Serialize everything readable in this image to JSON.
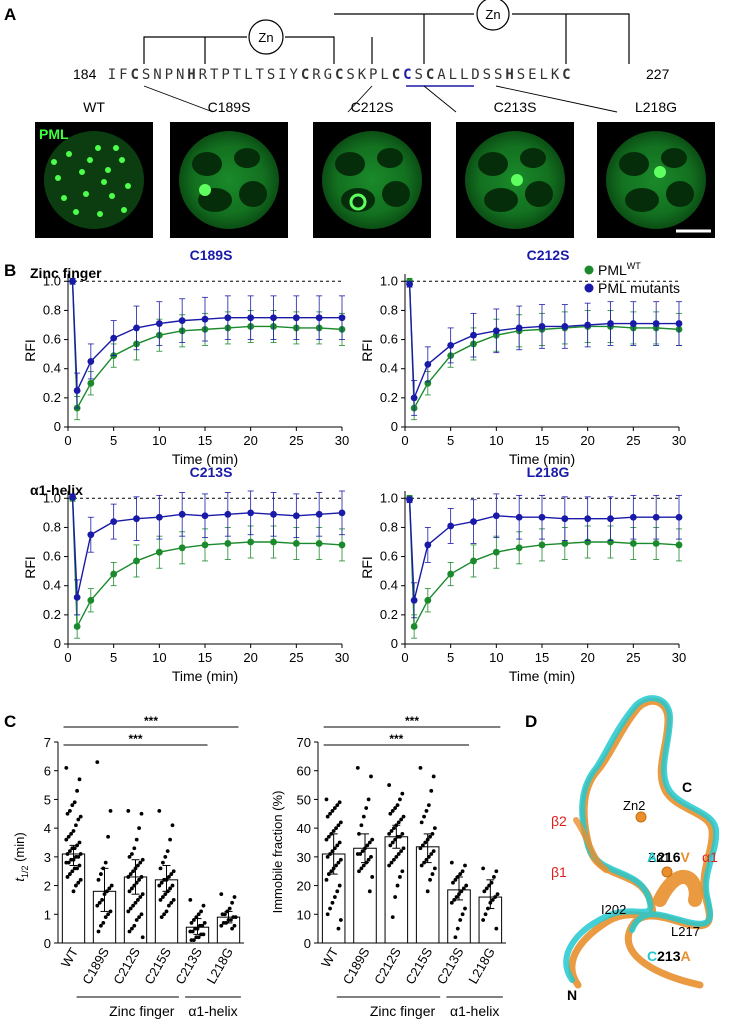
{
  "panel_a": {
    "label": "A",
    "start_index": "184",
    "end_index": "227",
    "zn_label": "Zn",
    "sequence": [
      {
        "t": "I",
        "b": false,
        "blue": false
      },
      {
        "t": "F",
        "b": false,
        "blue": false
      },
      {
        "t": "C",
        "b": true,
        "blue": false
      },
      {
        "t": "S",
        "b": false,
        "blue": false
      },
      {
        "t": "N",
        "b": false,
        "blue": false
      },
      {
        "t": "P",
        "b": false,
        "blue": false
      },
      {
        "t": "N",
        "b": false,
        "blue": false
      },
      {
        "t": "H",
        "b": true,
        "blue": false
      },
      {
        "t": "R",
        "b": false,
        "blue": false
      },
      {
        "t": "T",
        "b": false,
        "blue": false
      },
      {
        "t": "P",
        "b": false,
        "blue": false
      },
      {
        "t": "T",
        "b": false,
        "blue": false
      },
      {
        "t": "L",
        "b": false,
        "blue": false
      },
      {
        "t": "T",
        "b": false,
        "blue": false
      },
      {
        "t": "S",
        "b": false,
        "blue": false
      },
      {
        "t": "I",
        "b": false,
        "blue": false
      },
      {
        "t": "Y",
        "b": false,
        "blue": false
      },
      {
        "t": "C",
        "b": true,
        "blue": false
      },
      {
        "t": "R",
        "b": false,
        "blue": false
      },
      {
        "t": "G",
        "b": false,
        "blue": false
      },
      {
        "t": "C",
        "b": true,
        "blue": false
      },
      {
        "t": "S",
        "b": false,
        "blue": false
      },
      {
        "t": "K",
        "b": false,
        "blue": false
      },
      {
        "t": "P",
        "b": false,
        "blue": false
      },
      {
        "t": "L",
        "b": false,
        "blue": false
      },
      {
        "t": "C",
        "b": true,
        "blue": false
      },
      {
        "t": "C",
        "b": true,
        "blue": true
      },
      {
        "t": "S",
        "b": false,
        "blue": false
      },
      {
        "t": "C",
        "b": true,
        "blue": false
      },
      {
        "t": "A",
        "b": false,
        "blue": false
      },
      {
        "t": "L",
        "b": false,
        "blue": false
      },
      {
        "t": "L",
        "b": false,
        "blue": false
      },
      {
        "t": "D",
        "b": false,
        "blue": false
      },
      {
        "t": "S",
        "b": false,
        "blue": false
      },
      {
        "t": "S",
        "b": false,
        "blue": false
      },
      {
        "t": "H",
        "b": true,
        "blue": false
      },
      {
        "t": "S",
        "b": false,
        "blue": false
      },
      {
        "t": "E",
        "b": false,
        "blue": false
      },
      {
        "t": "L",
        "b": false,
        "blue": false
      },
      {
        "t": "K",
        "b": false,
        "blue": false
      },
      {
        "t": "C",
        "b": true,
        "blue": false
      }
    ],
    "images": [
      {
        "name": "WT",
        "badge": "PML",
        "blobs": "speckles"
      },
      {
        "name": "C189S",
        "badge": "",
        "blobs": "one-body"
      },
      {
        "name": "C212S",
        "badge": "",
        "blobs": "ring-body"
      },
      {
        "name": "C213S",
        "badge": "",
        "blobs": "one-body"
      },
      {
        "name": "L218G",
        "badge": "",
        "blobs": "one-body"
      }
    ]
  },
  "panel_b": {
    "label": "B",
    "group1_label": "Zinc finger",
    "group2_label": "α1-helix",
    "legend": [
      {
        "label": "PML",
        "sup": "WT",
        "color": "#1b8a2c"
      },
      {
        "label": "PML mutants",
        "sup": "",
        "color": "#1a1aa8"
      }
    ],
    "xlabel": "Time (min)",
    "ylabel": "RFI",
    "xticks": [
      "0",
      "5",
      "10",
      "15",
      "20",
      "25",
      "30"
    ],
    "yticks": [
      "0",
      "0.2",
      "0.4",
      "0.6",
      "0.8",
      "1.0"
    ]
  },
  "panel_c": {
    "label": "C",
    "left_ylabel_main": "t",
    "left_ylabel_sub": "1/2",
    "left_ylabel_unit": " (min)",
    "right_ylabel": "Immobile fraction (%)",
    "left_yticks": [
      "0",
      "1",
      "2",
      "3",
      "4",
      "5",
      "6",
      "7"
    ],
    "right_yticks": [
      "0",
      "10",
      "20",
      "30",
      "40",
      "50",
      "60",
      "70"
    ],
    "categories": [
      "WT",
      "C189S",
      "C212S",
      "C215S",
      "C213S",
      "L218G"
    ],
    "sig": "***",
    "group1": "Zinc finger",
    "group2": "α1-helix"
  },
  "panel_d": {
    "label": "D",
    "labels": {
      "c_term": "C",
      "n_term": "N",
      "zn2": "Zn2",
      "zn1": "Zn1",
      "b2": "β2",
      "b1": "β1",
      "a1": "α1",
      "i202": "I202",
      "l217": "L217"
    },
    "mut1": {
      "a": "A",
      "num": "216",
      "b": "V"
    },
    "mut2": {
      "a": "C",
      "num": "213",
      "b": "A"
    }
  },
  "chart_data": [
    {
      "type": "line",
      "title": "C189S",
      "xlabel": "Time (min)",
      "ylabel": "RFI",
      "ylim": [
        0,
        1.05
      ],
      "xlim": [
        0,
        30
      ],
      "x": [
        0.5,
        1,
        2.5,
        5,
        7.5,
        10,
        12.5,
        15,
        17.5,
        20,
        22.5,
        25,
        27.5,
        30
      ],
      "series": [
        {
          "name": "PML WT",
          "values": [
            1.0,
            0.13,
            0.3,
            0.49,
            0.57,
            0.63,
            0.66,
            0.67,
            0.68,
            0.69,
            0.69,
            0.68,
            0.68,
            0.67
          ]
        },
        {
          "name": "PML mutants",
          "values": [
            1.0,
            0.25,
            0.45,
            0.61,
            0.68,
            0.71,
            0.73,
            0.74,
            0.75,
            0.75,
            0.75,
            0.75,
            0.75,
            0.75
          ]
        }
      ]
    },
    {
      "type": "line",
      "title": "C212S",
      "xlabel": "Time (min)",
      "ylabel": "RFI",
      "ylim": [
        0,
        1.05
      ],
      "xlim": [
        0,
        30
      ],
      "x": [
        0.5,
        1,
        2.5,
        5,
        7.5,
        10,
        12.5,
        15,
        17.5,
        20,
        22.5,
        25,
        27.5,
        30
      ],
      "series": [
        {
          "name": "PML WT",
          "values": [
            1.0,
            0.13,
            0.3,
            0.49,
            0.57,
            0.63,
            0.66,
            0.67,
            0.68,
            0.69,
            0.69,
            0.68,
            0.68,
            0.67
          ]
        },
        {
          "name": "PML mutants",
          "values": [
            0.98,
            0.2,
            0.43,
            0.56,
            0.63,
            0.66,
            0.68,
            0.69,
            0.69,
            0.7,
            0.71,
            0.71,
            0.71,
            0.71
          ]
        }
      ]
    },
    {
      "type": "line",
      "title": "C213S",
      "xlabel": "Time (min)",
      "ylabel": "RFI",
      "ylim": [
        0,
        1.05
      ],
      "xlim": [
        0,
        30
      ],
      "x": [
        0.5,
        1,
        2.5,
        5,
        7.5,
        10,
        12.5,
        15,
        17.5,
        20,
        22.5,
        25,
        27.5,
        30
      ],
      "series": [
        {
          "name": "PML WT",
          "values": [
            1.0,
            0.12,
            0.3,
            0.48,
            0.57,
            0.63,
            0.66,
            0.68,
            0.69,
            0.7,
            0.7,
            0.69,
            0.69,
            0.68
          ]
        },
        {
          "name": "PML mutants",
          "values": [
            1.01,
            0.32,
            0.75,
            0.84,
            0.86,
            0.87,
            0.89,
            0.88,
            0.89,
            0.9,
            0.89,
            0.88,
            0.89,
            0.9
          ]
        }
      ]
    },
    {
      "type": "line",
      "title": "L218G",
      "xlabel": "Time (min)",
      "ylabel": "RFI",
      "ylim": [
        0,
        1.05
      ],
      "xlim": [
        0,
        30
      ],
      "x": [
        0.5,
        1,
        2.5,
        5,
        7.5,
        10,
        12.5,
        15,
        17.5,
        20,
        22.5,
        25,
        27.5,
        30
      ],
      "series": [
        {
          "name": "PML WT",
          "values": [
            1.0,
            0.12,
            0.3,
            0.48,
            0.57,
            0.63,
            0.66,
            0.68,
            0.69,
            0.7,
            0.7,
            0.69,
            0.69,
            0.68
          ]
        },
        {
          "name": "PML mutants",
          "values": [
            0.99,
            0.3,
            0.68,
            0.81,
            0.84,
            0.88,
            0.87,
            0.87,
            0.86,
            0.86,
            0.86,
            0.87,
            0.87,
            0.87
          ]
        }
      ]
    },
    {
      "type": "bar",
      "ylabel": "t1/2 (min)",
      "ylim": [
        0,
        7
      ],
      "categories": [
        "WT",
        "C189S",
        "C212S",
        "C215S",
        "C213S",
        "L218G"
      ],
      "values": [
        3.1,
        1.8,
        2.3,
        2.2,
        0.55,
        0.9
      ],
      "errors": [
        [
          2.7,
          3.4
        ],
        [
          1.1,
          2.6
        ],
        [
          1.7,
          2.9
        ],
        [
          1.8,
          2.7
        ],
        [
          0.3,
          0.85
        ],
        [
          0.7,
          1.1
        ]
      ],
      "points": [
        [
          6.1,
          5.7,
          5.3,
          4.9,
          4.8,
          4.6,
          4.5,
          4.4,
          4.3,
          4.1,
          3.9,
          3.8,
          3.7,
          3.6,
          3.5,
          3.4,
          3.3,
          3.3,
          3.2,
          3.1,
          3.1,
          3.0,
          3.0,
          2.9,
          2.9,
          2.8,
          2.8,
          2.7,
          2.6,
          2.6,
          2.5,
          2.4,
          2.3,
          2.2,
          2.1,
          2.0,
          1.8
        ],
        [
          6.3,
          4.6,
          3.7,
          2.8,
          2.6,
          2.4,
          2.2,
          2.0,
          1.9,
          1.8,
          1.7,
          1.5,
          1.4,
          1.3,
          1.1,
          1.0,
          0.9,
          0.7,
          0.6,
          0.4
        ],
        [
          4.6,
          4.5,
          4.0,
          3.6,
          3.3,
          3.1,
          3.0,
          2.9,
          2.8,
          2.7,
          2.6,
          2.5,
          2.4,
          2.3,
          2.3,
          2.2,
          2.1,
          2.0,
          1.9,
          1.8,
          1.7,
          1.6,
          1.5,
          1.4,
          1.3,
          1.2,
          1.1,
          1.0,
          0.9,
          0.8,
          0.6,
          0.5,
          0.4,
          0.2
        ],
        [
          4.6,
          4.1,
          3.6,
          3.2,
          3.0,
          2.8,
          2.6,
          2.5,
          2.4,
          2.3,
          2.2,
          2.2,
          2.1,
          2.0,
          2.0,
          1.9,
          1.8,
          1.7,
          1.6,
          1.5,
          1.5,
          1.4,
          1.3,
          1.1,
          1.0,
          0.9
        ],
        [
          1.5,
          1.3,
          1.1,
          1.0,
          0.9,
          0.8,
          0.7,
          0.7,
          0.6,
          0.6,
          0.5,
          0.5,
          0.4,
          0.4,
          0.3,
          0.3,
          0.2,
          0.2,
          0.1,
          0.1
        ],
        [
          1.7,
          1.6,
          1.4,
          1.2,
          1.1,
          1.0,
          1.0,
          0.9,
          0.9,
          0.8,
          0.8,
          0.7,
          0.7,
          0.6,
          0.6,
          0.5
        ]
      ]
    },
    {
      "type": "bar",
      "ylabel": "Immobile fraction (%)",
      "ylim": [
        0,
        70
      ],
      "categories": [
        "WT",
        "C189S",
        "C212S",
        "C215S",
        "C213S",
        "L218G"
      ],
      "values": [
        31,
        33,
        37,
        33.5,
        18.5,
        16
      ],
      "errors": [
        [
          24,
          38
        ],
        [
          28,
          38
        ],
        [
          33,
          41
        ],
        [
          28,
          38
        ],
        [
          15,
          23
        ],
        [
          12,
          22
        ]
      ],
      "points": [
        [
          50,
          49,
          48,
          47,
          46,
          45,
          44,
          42,
          41,
          40,
          39,
          38,
          37,
          36,
          35,
          34,
          33,
          32,
          31,
          30,
          29,
          28,
          27,
          26,
          25,
          24,
          22,
          20,
          18,
          16,
          14,
          12,
          10,
          8,
          5
        ],
        [
          61,
          58,
          50,
          47,
          44,
          41,
          38,
          36,
          35,
          34,
          33,
          32,
          31,
          31,
          30,
          29,
          28,
          27,
          26,
          25,
          23,
          18
        ],
        [
          55,
          52,
          50,
          48,
          47,
          46,
          45,
          44,
          43,
          42,
          41,
          40,
          39,
          38,
          38,
          37,
          37,
          36,
          35,
          34,
          33,
          32,
          31,
          30,
          29,
          28,
          27,
          25,
          23,
          20,
          16,
          9
        ],
        [
          61,
          58,
          53,
          48,
          46,
          44,
          42,
          40,
          38,
          37,
          36,
          35,
          34,
          33,
          32,
          31,
          30,
          29,
          28,
          27,
          26,
          24,
          22,
          18
        ],
        [
          28,
          27,
          25,
          24,
          23,
          22,
          21,
          20,
          19,
          18,
          17,
          16,
          15,
          14,
          12,
          10,
          8,
          5,
          2
        ],
        [
          26,
          25,
          23,
          21,
          20,
          19,
          18,
          17,
          16,
          15,
          14,
          12,
          10,
          8,
          5
        ]
      ]
    }
  ]
}
